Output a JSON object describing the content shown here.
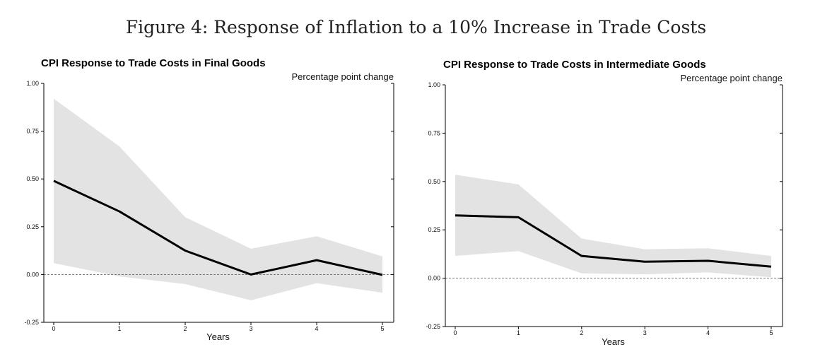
{
  "figure_title": "Figure 4: Response of Inflation to a 10% Increase in Trade Costs",
  "chart_data": [
    {
      "type": "line",
      "title": "CPI Response to Trade Costs in Final Goods",
      "units_label": "Percentage point change",
      "xlabel": "Years",
      "ylabel": "",
      "x": [
        0,
        1,
        2,
        3,
        4,
        5
      ],
      "x_tick_labels": [
        "0",
        "1",
        "2",
        "3",
        "4",
        "5"
      ],
      "ylim": [
        -0.25,
        1.0
      ],
      "y_ticks": [
        -0.25,
        0.0,
        0.25,
        0.5,
        0.75,
        1.0
      ],
      "y_tick_labels": [
        "-0.25",
        "0.00",
        "0.25",
        "0.50",
        "0.75",
        "1.00"
      ],
      "series": [
        {
          "name": "Point estimate",
          "values": [
            0.49,
            0.33,
            0.125,
            0.0,
            0.075,
            -0.002
          ]
        },
        {
          "name": "Upper bound",
          "values": [
            0.92,
            0.67,
            0.3,
            0.135,
            0.2,
            0.095
          ]
        },
        {
          "name": "Lower bound",
          "values": [
            0.06,
            -0.01,
            -0.05,
            -0.135,
            -0.045,
            -0.095
          ]
        }
      ],
      "zero_line": true,
      "colors": {
        "line": "#000000",
        "band": "#e3e3e3",
        "zero": "#555555"
      }
    },
    {
      "type": "line",
      "title": "CPI Response to Trade Costs in Intermediate Goods",
      "units_label": "Percentage point change",
      "xlabel": "Years",
      "ylabel": "",
      "x": [
        0,
        1,
        2,
        3,
        4,
        5
      ],
      "x_tick_labels": [
        "0",
        "1",
        "2",
        "3",
        "4",
        "5"
      ],
      "ylim": [
        -0.25,
        1.0
      ],
      "y_ticks": [
        -0.25,
        0.0,
        0.25,
        0.5,
        0.75,
        1.0
      ],
      "y_tick_labels": [
        "-0.25",
        "0.00",
        "0.25",
        "0.50",
        "0.75",
        "1.00"
      ],
      "series": [
        {
          "name": "Point estimate",
          "values": [
            0.325,
            0.315,
            0.115,
            0.085,
            0.09,
            0.06
          ]
        },
        {
          "name": "Upper bound",
          "values": [
            0.535,
            0.485,
            0.205,
            0.15,
            0.155,
            0.115
          ]
        },
        {
          "name": "Lower bound",
          "values": [
            0.115,
            0.14,
            0.025,
            0.02,
            0.03,
            0.005
          ]
        }
      ],
      "zero_line": true,
      "colors": {
        "line": "#000000",
        "band": "#e3e3e3",
        "zero": "#555555"
      }
    }
  ]
}
